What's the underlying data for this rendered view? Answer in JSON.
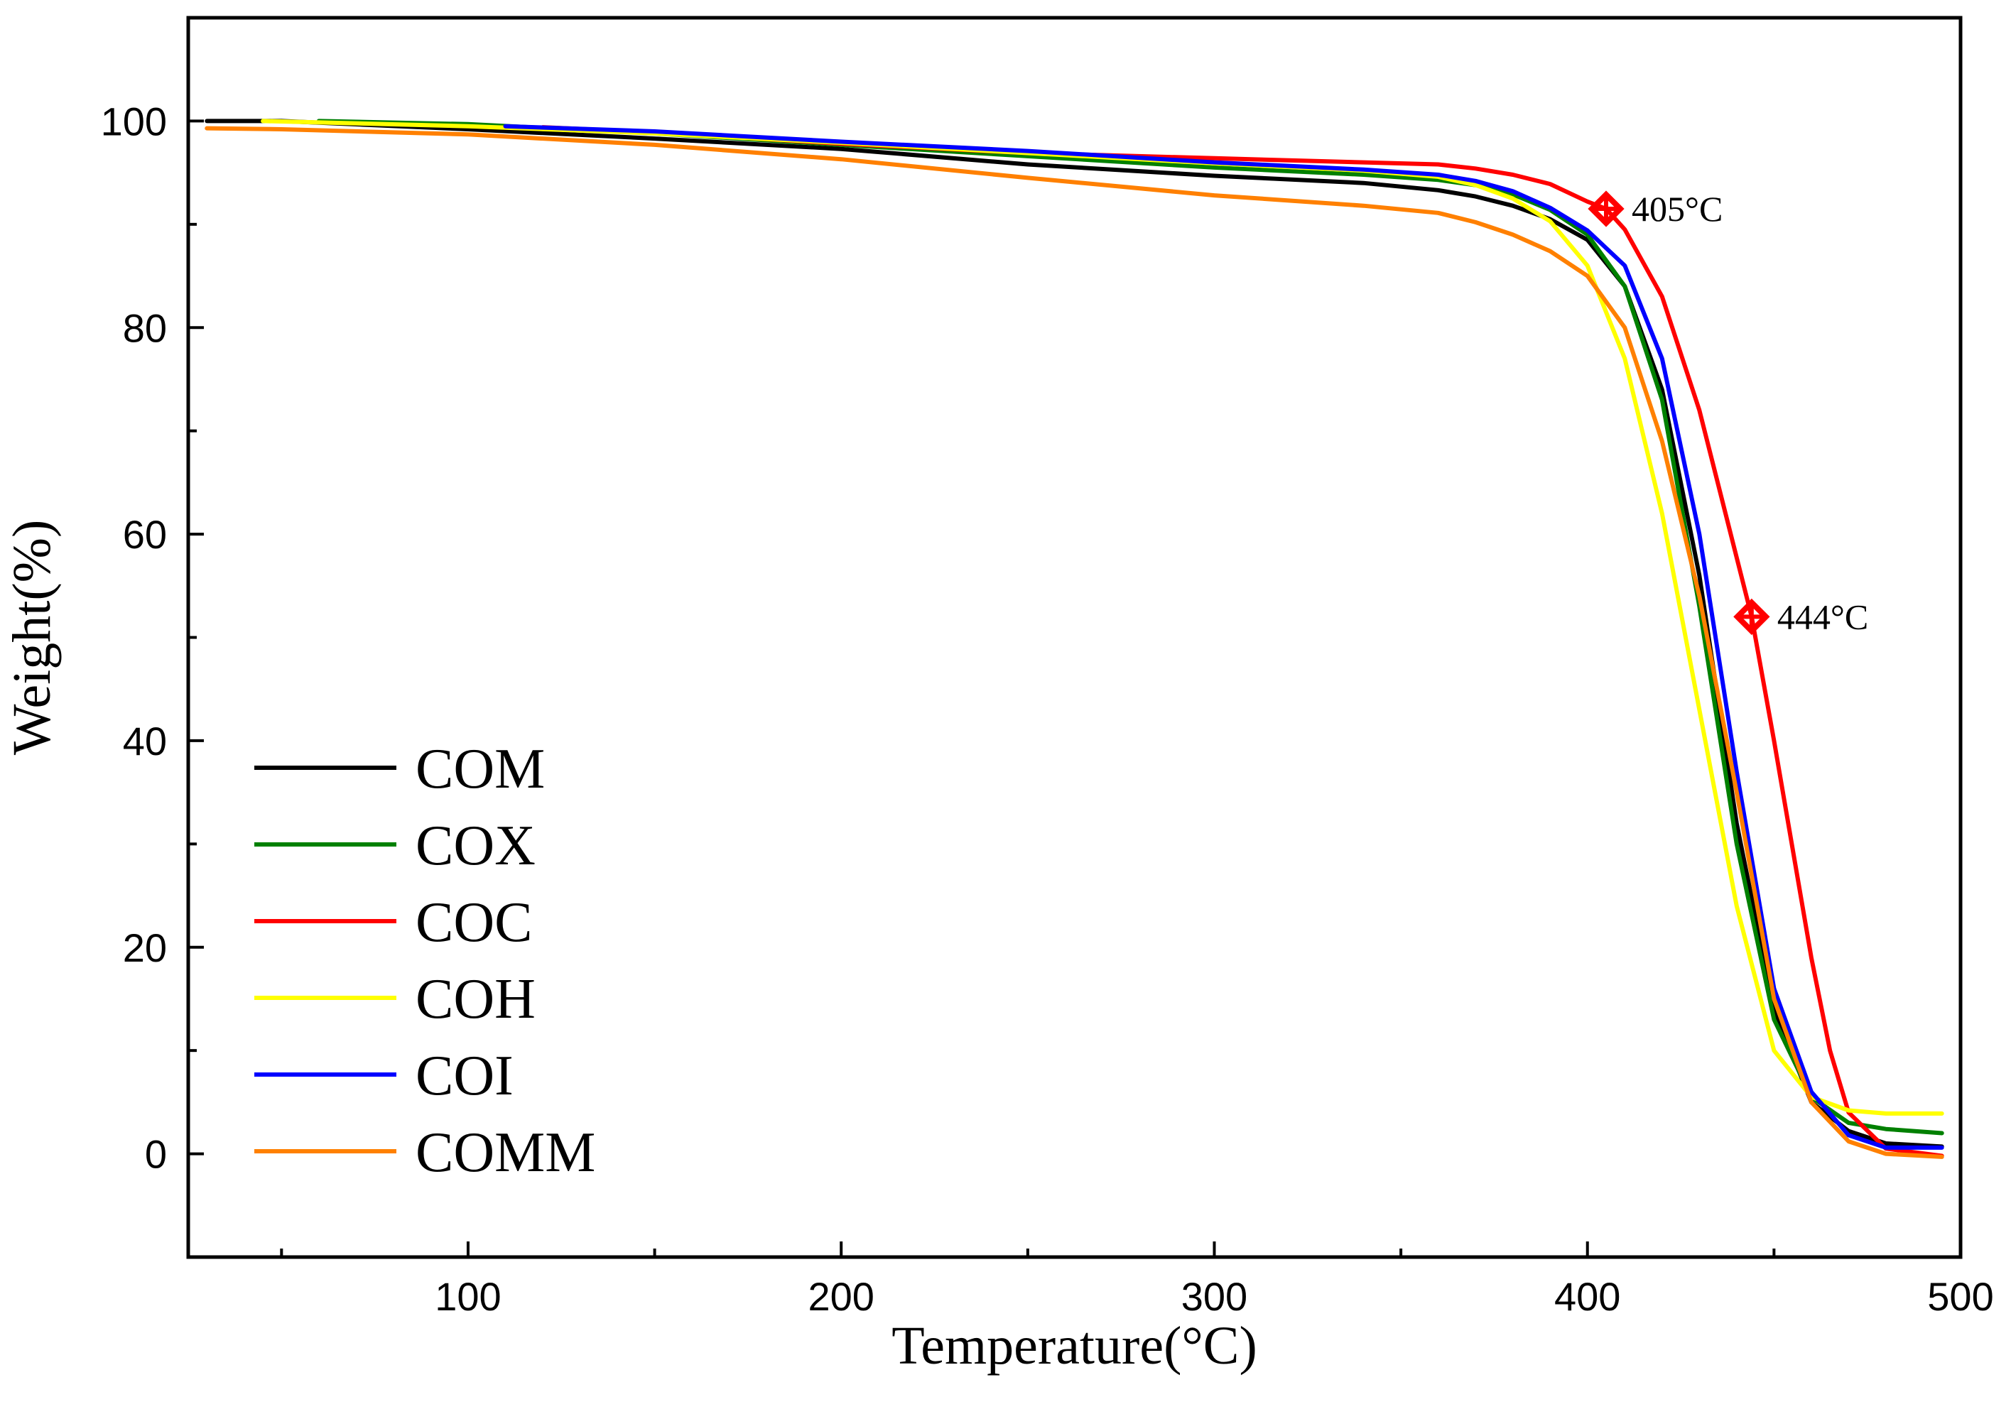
{
  "chart_data": {
    "type": "line",
    "title": "",
    "xlabel": "Temperature(°C)",
    "ylabel": "Weight(%)",
    "xlim": [
      25,
      500
    ],
    "ylim": [
      -10,
      110
    ],
    "x_major_ticks": [
      100,
      200,
      300,
      400,
      500
    ],
    "x_minor_ticks": [
      50,
      150,
      250,
      350,
      450
    ],
    "y_major_ticks": [
      0,
      20,
      40,
      60,
      80,
      100
    ],
    "y_minor_ticks": [
      10,
      30,
      50,
      70,
      90
    ],
    "grid": false,
    "legend_position": "bottom-left",
    "series": [
      {
        "name": "COM",
        "color": "#000000",
        "points": [
          [
            30,
            100
          ],
          [
            50,
            100
          ],
          [
            100,
            99.2
          ],
          [
            150,
            98.3
          ],
          [
            200,
            97.3
          ],
          [
            250,
            95.8
          ],
          [
            300,
            94.7
          ],
          [
            340,
            94.0
          ],
          [
            360,
            93.3
          ],
          [
            370,
            92.7
          ],
          [
            380,
            91.8
          ],
          [
            390,
            90.5
          ],
          [
            400,
            88.5
          ],
          [
            410,
            84
          ],
          [
            420,
            74
          ],
          [
            430,
            56
          ],
          [
            440,
            32
          ],
          [
            450,
            14
          ],
          [
            460,
            5
          ],
          [
            470,
            2.2
          ],
          [
            480,
            1.0
          ],
          [
            495,
            0.7
          ]
        ]
      },
      {
        "name": "COX",
        "color": "#008000",
        "points": [
          [
            60,
            100
          ],
          [
            100,
            99.7
          ],
          [
            150,
            98.8
          ],
          [
            200,
            97.7
          ],
          [
            250,
            96.6
          ],
          [
            300,
            95.5
          ],
          [
            340,
            94.8
          ],
          [
            360,
            94.3
          ],
          [
            370,
            93.8
          ],
          [
            380,
            92.9
          ],
          [
            390,
            91.4
          ],
          [
            400,
            89
          ],
          [
            410,
            84
          ],
          [
            420,
            73
          ],
          [
            430,
            53
          ],
          [
            440,
            30
          ],
          [
            450,
            13
          ],
          [
            460,
            5.5
          ],
          [
            470,
            3
          ],
          [
            480,
            2.4
          ],
          [
            495,
            2.0
          ]
        ]
      },
      {
        "name": "COC",
        "color": "#ff0000",
        "points": [
          [
            120,
            99.4
          ],
          [
            150,
            98.9
          ],
          [
            200,
            97.8
          ],
          [
            250,
            96.9
          ],
          [
            300,
            96.4
          ],
          [
            340,
            96.0
          ],
          [
            360,
            95.8
          ],
          [
            370,
            95.4
          ],
          [
            380,
            94.8
          ],
          [
            390,
            93.9
          ],
          [
            400,
            92.2
          ],
          [
            405,
            91.5
          ],
          [
            410,
            89.5
          ],
          [
            420,
            83
          ],
          [
            430,
            72
          ],
          [
            437,
            62
          ],
          [
            444,
            52
          ],
          [
            450,
            40
          ],
          [
            460,
            19
          ],
          [
            465,
            10
          ],
          [
            470,
            4
          ],
          [
            480,
            0.5
          ],
          [
            495,
            -0.2
          ]
        ]
      },
      {
        "name": "COH",
        "color": "#ffff00",
        "points": [
          [
            45,
            100
          ],
          [
            100,
            99.5
          ],
          [
            150,
            98.8
          ],
          [
            200,
            97.9
          ],
          [
            250,
            96.9
          ],
          [
            300,
            95.9
          ],
          [
            340,
            95.2
          ],
          [
            360,
            94.6
          ],
          [
            370,
            93.8
          ],
          [
            380,
            92.5
          ],
          [
            390,
            90.3
          ],
          [
            400,
            86
          ],
          [
            410,
            77
          ],
          [
            420,
            62
          ],
          [
            430,
            43
          ],
          [
            440,
            24
          ],
          [
            450,
            10
          ],
          [
            460,
            5.5
          ],
          [
            470,
            4.2
          ],
          [
            480,
            3.9
          ],
          [
            495,
            3.9
          ]
        ]
      },
      {
        "name": "COI",
        "color": "#0000ff",
        "points": [
          [
            110,
            99.5
          ],
          [
            150,
            99.0
          ],
          [
            200,
            98.0
          ],
          [
            250,
            97.1
          ],
          [
            300,
            96.0
          ],
          [
            340,
            95.3
          ],
          [
            360,
            94.8
          ],
          [
            370,
            94.2
          ],
          [
            380,
            93.2
          ],
          [
            390,
            91.6
          ],
          [
            400,
            89.4
          ],
          [
            410,
            86
          ],
          [
            420,
            77
          ],
          [
            430,
            60
          ],
          [
            440,
            37
          ],
          [
            450,
            16
          ],
          [
            460,
            6
          ],
          [
            470,
            1.8
          ],
          [
            480,
            0.6
          ],
          [
            495,
            0.6
          ]
        ]
      },
      {
        "name": "COMM",
        "color": "#ff8000",
        "points": [
          [
            30,
            99.3
          ],
          [
            50,
            99.2
          ],
          [
            100,
            98.7
          ],
          [
            150,
            97.7
          ],
          [
            200,
            96.3
          ],
          [
            250,
            94.5
          ],
          [
            300,
            92.8
          ],
          [
            340,
            91.8
          ],
          [
            360,
            91.1
          ],
          [
            370,
            90.2
          ],
          [
            380,
            89.0
          ],
          [
            390,
            87.4
          ],
          [
            400,
            85
          ],
          [
            410,
            80
          ],
          [
            420,
            69
          ],
          [
            430,
            54
          ],
          [
            440,
            35
          ],
          [
            450,
            15
          ],
          [
            460,
            5
          ],
          [
            470,
            1.2
          ],
          [
            480,
            0.0
          ],
          [
            495,
            -0.3
          ]
        ]
      }
    ],
    "annotations": [
      {
        "text": "405°C",
        "x": 405,
        "y": 91.5,
        "marker_color": "#ff0000"
      },
      {
        "text": "444°C",
        "x": 444,
        "y": 52,
        "marker_color": "#ff0000"
      }
    ]
  }
}
